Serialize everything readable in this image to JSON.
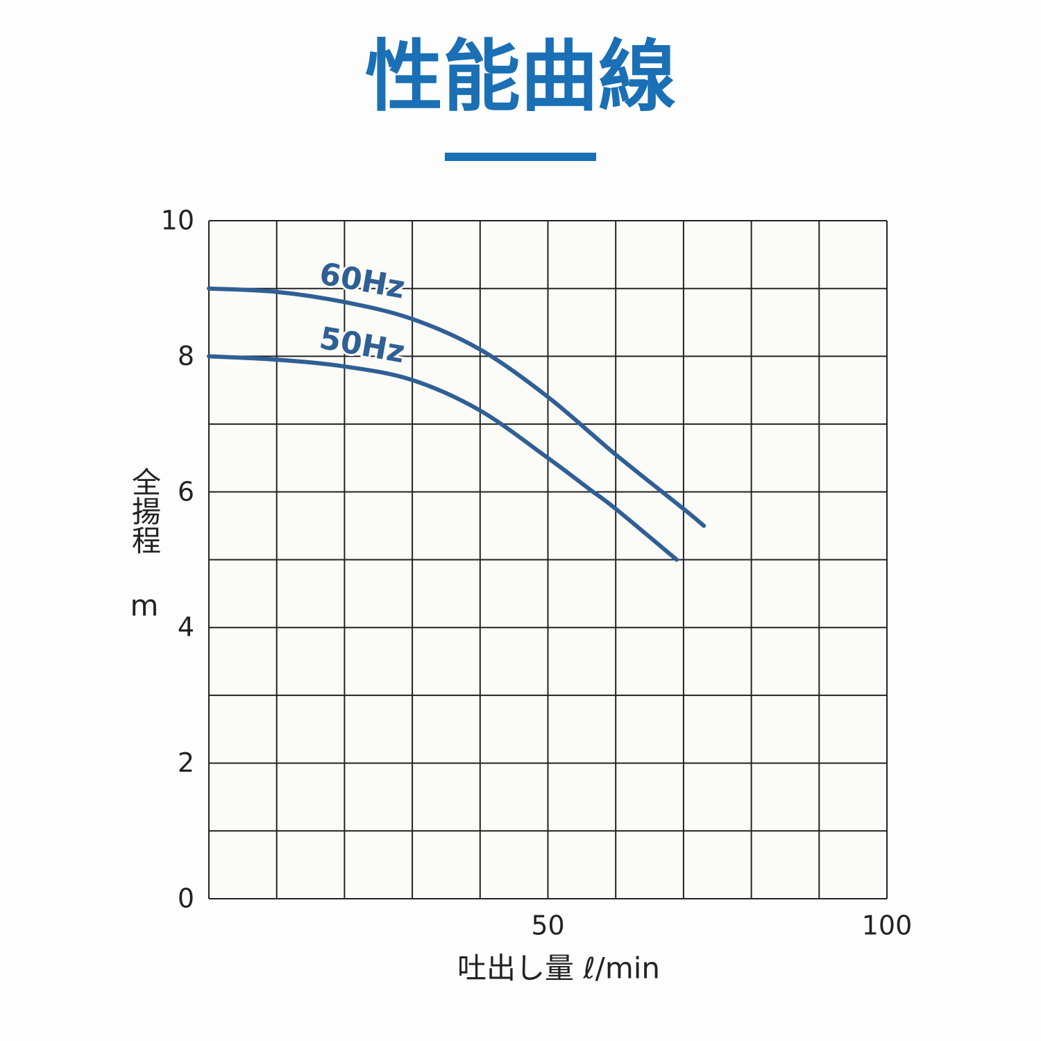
{
  "chart_data": {
    "type": "line",
    "title": "性能曲線",
    "x_label": "吐出し量 ℓ/min",
    "y_label": "全揚程 m",
    "xlim": [
      0,
      100
    ],
    "ylim": [
      0,
      10
    ],
    "xticks": [
      50,
      100
    ],
    "yticks": [
      0,
      2,
      4,
      6,
      8,
      10
    ],
    "xgrid": [
      0,
      10,
      20,
      30,
      40,
      50,
      60,
      70,
      80,
      90,
      100
    ],
    "ygrid": [
      0,
      1,
      2,
      3,
      4,
      5,
      6,
      7,
      8,
      9,
      10
    ],
    "grid": true,
    "series": [
      {
        "name": "60Hz",
        "color": "#2f5f95",
        "x": [
          0,
          10,
          20,
          30,
          40,
          50,
          60,
          70,
          73
        ],
        "values": [
          9.0,
          8.95,
          8.8,
          8.55,
          8.1,
          7.4,
          6.55,
          5.75,
          5.5
        ]
      },
      {
        "name": "50Hz",
        "color": "#2f5f95",
        "x": [
          0,
          10,
          20,
          30,
          40,
          50,
          56,
          60,
          69
        ],
        "values": [
          8.0,
          7.95,
          7.85,
          7.65,
          7.2,
          6.5,
          6.05,
          5.75,
          5.0
        ]
      }
    ]
  }
}
